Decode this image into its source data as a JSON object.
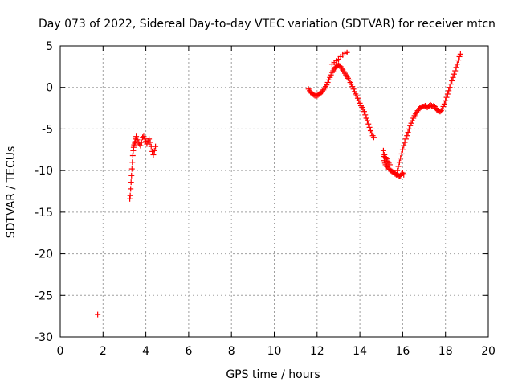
{
  "chart_data": {
    "type": "scatter",
    "title": "Day 073 of 2022, Sidereal Day-to-day VTEC variation (SDTVAR) for receiver mtcn",
    "xlabel": "GPS time / hours",
    "ylabel": "SDTVAR / TECUs",
    "xlim": [
      0,
      20
    ],
    "ylim": [
      -30,
      5
    ],
    "xticks": [
      0,
      2,
      4,
      6,
      8,
      10,
      12,
      14,
      16,
      18,
      20
    ],
    "yticks": [
      5,
      0,
      -5,
      -10,
      -15,
      -20,
      -25,
      -30
    ],
    "xtick_labels": [
      "0",
      "2",
      "4",
      "6",
      "8",
      "10",
      "12",
      "14",
      "16",
      "18",
      "20"
    ],
    "ytick_labels": [
      "5",
      "0",
      "-5",
      "-10",
      "-15",
      "-20",
      "-25",
      "-30"
    ],
    "grid": true,
    "marker": "+",
    "series": [
      {
        "name": "SDTVAR",
        "color": "#ff0000",
        "points": [
          [
            1.75,
            -27.3
          ],
          [
            3.25,
            -13.4
          ],
          [
            3.27,
            -13.0
          ],
          [
            3.29,
            -12.2
          ],
          [
            3.31,
            -11.4
          ],
          [
            3.33,
            -10.6
          ],
          [
            3.35,
            -9.8
          ],
          [
            3.37,
            -9.0
          ],
          [
            3.39,
            -8.2
          ],
          [
            3.41,
            -7.6
          ],
          [
            3.43,
            -7.2
          ],
          [
            3.45,
            -6.9
          ],
          [
            3.48,
            -6.7
          ],
          [
            3.5,
            -6.5
          ],
          [
            3.52,
            -6.2
          ],
          [
            3.55,
            -5.9
          ],
          [
            3.6,
            -6.3
          ],
          [
            3.65,
            -6.6
          ],
          [
            3.7,
            -6.8
          ],
          [
            3.75,
            -7.0
          ],
          [
            3.8,
            -6.6
          ],
          [
            3.85,
            -6.0
          ],
          [
            3.9,
            -5.9
          ],
          [
            3.95,
            -6.2
          ],
          [
            4.0,
            -6.5
          ],
          [
            4.05,
            -6.8
          ],
          [
            4.1,
            -6.4
          ],
          [
            4.15,
            -6.2
          ],
          [
            4.2,
            -6.6
          ],
          [
            4.25,
            -7.1
          ],
          [
            4.3,
            -7.7
          ],
          [
            4.35,
            -8.1
          ],
          [
            4.4,
            -7.6
          ],
          [
            4.45,
            -7.1
          ],
          [
            11.6,
            -0.2
          ],
          [
            11.65,
            -0.4
          ],
          [
            11.7,
            -0.6
          ],
          [
            11.75,
            -0.7
          ],
          [
            11.8,
            -0.8
          ],
          [
            11.85,
            -0.9
          ],
          [
            11.9,
            -1.0
          ],
          [
            11.95,
            -1.0
          ],
          [
            12.0,
            -1.0
          ],
          [
            12.05,
            -0.9
          ],
          [
            12.1,
            -0.8
          ],
          [
            12.15,
            -0.7
          ],
          [
            12.2,
            -0.6
          ],
          [
            12.25,
            -0.5
          ],
          [
            12.3,
            -0.3
          ],
          [
            12.35,
            -0.1
          ],
          [
            12.4,
            0.1
          ],
          [
            12.45,
            0.3
          ],
          [
            12.5,
            0.6
          ],
          [
            12.55,
            0.9
          ],
          [
            12.6,
            1.2
          ],
          [
            12.65,
            1.5
          ],
          [
            12.7,
            1.8
          ],
          [
            12.75,
            2.0
          ],
          [
            12.8,
            2.2
          ],
          [
            12.85,
            2.4
          ],
          [
            12.9,
            2.5
          ],
          [
            12.95,
            2.6
          ],
          [
            13.0,
            2.7
          ],
          [
            13.05,
            2.6
          ],
          [
            13.1,
            2.5
          ],
          [
            13.15,
            2.3
          ],
          [
            13.2,
            2.1
          ],
          [
            13.25,
            1.9
          ],
          [
            13.3,
            1.7
          ],
          [
            13.35,
            1.5
          ],
          [
            13.4,
            1.3
          ],
          [
            13.45,
            1.1
          ],
          [
            13.5,
            0.9
          ],
          [
            13.55,
            0.6
          ],
          [
            13.6,
            0.4
          ],
          [
            13.65,
            0.1
          ],
          [
            13.7,
            -0.2
          ],
          [
            13.75,
            -0.5
          ],
          [
            13.8,
            -0.8
          ],
          [
            13.85,
            -1.0
          ],
          [
            13.9,
            -1.3
          ],
          [
            13.95,
            -1.6
          ],
          [
            14.0,
            -1.9
          ],
          [
            14.05,
            -2.2
          ],
          [
            14.1,
            -2.4
          ],
          [
            14.15,
            -2.6
          ],
          [
            14.2,
            -2.9
          ],
          [
            14.25,
            -3.3
          ],
          [
            14.3,
            -3.7
          ],
          [
            14.35,
            -4.0
          ],
          [
            14.4,
            -4.4
          ],
          [
            14.45,
            -4.8
          ],
          [
            14.5,
            -5.2
          ],
          [
            14.55,
            -5.5
          ],
          [
            14.6,
            -5.8
          ],
          [
            14.65,
            -6.0
          ],
          [
            12.7,
            2.8
          ],
          [
            12.8,
            3.0
          ],
          [
            12.9,
            3.2
          ],
          [
            13.0,
            3.4
          ],
          [
            13.1,
            3.7
          ],
          [
            13.2,
            3.9
          ],
          [
            13.3,
            4.1
          ],
          [
            13.4,
            4.2
          ],
          [
            15.1,
            -7.6
          ],
          [
            15.12,
            -8.3
          ],
          [
            15.14,
            -8.8
          ],
          [
            15.17,
            -9.1
          ],
          [
            15.2,
            -9.3
          ],
          [
            15.25,
            -9.5
          ],
          [
            15.3,
            -9.6
          ],
          [
            15.35,
            -9.8
          ],
          [
            15.4,
            -9.9
          ],
          [
            15.45,
            -10.0
          ],
          [
            15.5,
            -10.1
          ],
          [
            15.55,
            -10.2
          ],
          [
            15.6,
            -10.3
          ],
          [
            15.65,
            -10.4
          ],
          [
            15.7,
            -10.5
          ],
          [
            15.75,
            -10.5
          ],
          [
            15.8,
            -10.6
          ],
          [
            15.85,
            -10.7
          ],
          [
            15.9,
            -10.6
          ],
          [
            15.95,
            -10.4
          ],
          [
            16.0,
            -10.3
          ],
          [
            16.05,
            -10.5
          ],
          [
            15.15,
            -8.1
          ],
          [
            15.2,
            -8.4
          ],
          [
            15.25,
            -8.6
          ],
          [
            15.3,
            -8.9
          ],
          [
            15.35,
            -9.1
          ],
          [
            15.4,
            -9.3
          ],
          [
            15.75,
            -10.0
          ],
          [
            15.8,
            -9.5
          ],
          [
            15.85,
            -9.0
          ],
          [
            15.9,
            -8.5
          ],
          [
            15.95,
            -8.0
          ],
          [
            16.0,
            -7.5
          ],
          [
            16.05,
            -7.0
          ],
          [
            16.1,
            -6.6
          ],
          [
            16.15,
            -6.2
          ],
          [
            16.2,
            -5.8
          ],
          [
            16.25,
            -5.4
          ],
          [
            16.3,
            -5.0
          ],
          [
            16.35,
            -4.6
          ],
          [
            16.4,
            -4.3
          ],
          [
            16.45,
            -4.0
          ],
          [
            16.5,
            -3.7
          ],
          [
            16.55,
            -3.4
          ],
          [
            16.6,
            -3.2
          ],
          [
            16.65,
            -3.0
          ],
          [
            16.7,
            -2.8
          ],
          [
            16.75,
            -2.6
          ],
          [
            16.8,
            -2.5
          ],
          [
            16.85,
            -2.4
          ],
          [
            16.9,
            -2.3
          ],
          [
            16.95,
            -2.3
          ],
          [
            17.0,
            -2.3
          ],
          [
            17.05,
            -2.2
          ],
          [
            17.1,
            -2.3
          ],
          [
            17.15,
            -2.4
          ],
          [
            17.2,
            -2.3
          ],
          [
            17.25,
            -2.2
          ],
          [
            17.3,
            -2.1
          ],
          [
            17.35,
            -2.2
          ],
          [
            17.4,
            -2.3
          ],
          [
            17.45,
            -2.2
          ],
          [
            17.5,
            -2.3
          ],
          [
            17.55,
            -2.5
          ],
          [
            17.6,
            -2.7
          ],
          [
            17.65,
            -2.8
          ],
          [
            17.7,
            -2.9
          ],
          [
            17.75,
            -2.9
          ],
          [
            17.8,
            -2.8
          ],
          [
            17.85,
            -2.6
          ],
          [
            17.9,
            -2.3
          ],
          [
            17.95,
            -2.0
          ],
          [
            18.0,
            -1.6
          ],
          [
            18.05,
            -1.2
          ],
          [
            18.1,
            -0.8
          ],
          [
            18.15,
            -0.4
          ],
          [
            18.2,
            0.0
          ],
          [
            18.25,
            0.4
          ],
          [
            18.3,
            0.8
          ],
          [
            18.35,
            1.2
          ],
          [
            18.4,
            1.6
          ],
          [
            18.45,
            2.0
          ],
          [
            18.5,
            2.4
          ],
          [
            18.55,
            2.8
          ],
          [
            18.6,
            3.3
          ],
          [
            18.65,
            3.7
          ],
          [
            18.7,
            4.0
          ]
        ]
      }
    ]
  }
}
